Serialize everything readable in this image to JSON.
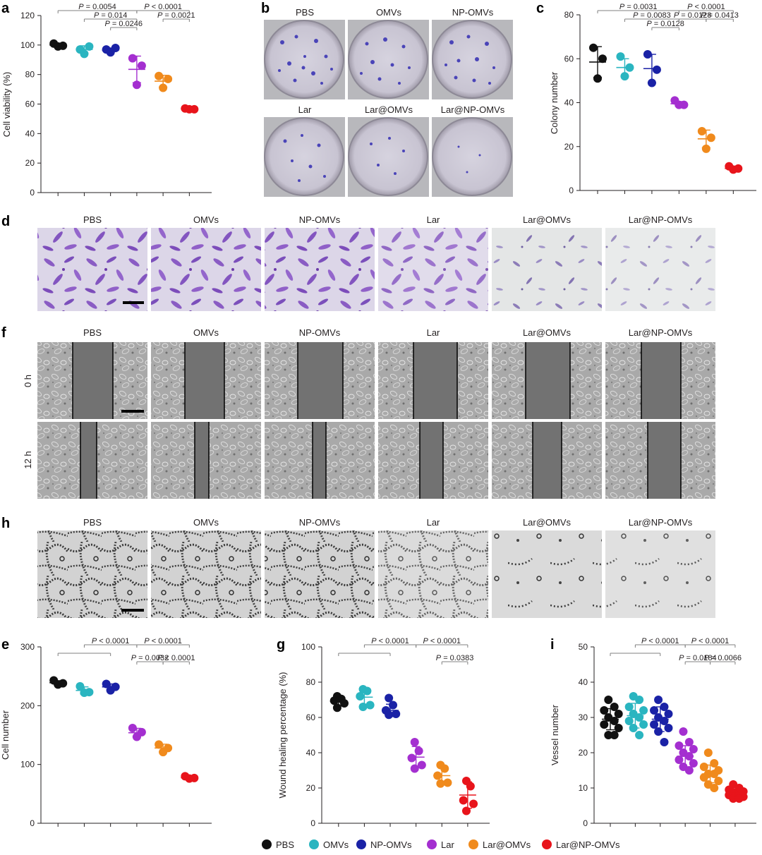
{
  "groups": [
    "PBS",
    "OMVs",
    "NP-OMVs",
    "Lar",
    "Lar@OMVs",
    "Lar@NP-OMVs"
  ],
  "group_colors": [
    "#111111",
    "#2ab5c0",
    "#1a22a6",
    "#a42fd0",
    "#f08a1c",
    "#e8141b"
  ],
  "panel_letters": {
    "a": "a",
    "b": "b",
    "c": "c",
    "d": "d",
    "f": "f",
    "h": "h",
    "e": "e",
    "g": "g",
    "i": "i"
  },
  "panel_b": {
    "top_labels": [
      "PBS",
      "OMVs",
      "NP-OMVs"
    ],
    "bottom_labels": [
      "Lar",
      "Lar@OMVs",
      "Lar@NP-OMVs"
    ]
  },
  "panel_d": {
    "labels": [
      "PBS",
      "OMVs",
      "NP-OMVs",
      "Lar",
      "Lar@OMVs",
      "Lar@NP-OMVs"
    ]
  },
  "panel_f": {
    "labels": [
      "PBS",
      "OMVs",
      "NP-OMVs",
      "Lar",
      "Lar@OMVs",
      "Lar@NP-OMVs"
    ],
    "rows": [
      "0 h",
      "12 h"
    ]
  },
  "panel_h": {
    "labels": [
      "PBS",
      "OMVs",
      "NP-OMVs",
      "Lar",
      "Lar@OMVs",
      "Lar@NP-OMVs"
    ]
  },
  "legend": {
    "entries": [
      "PBS",
      "OMVs",
      "NP-OMVs",
      "Lar",
      "Lar@OMVs",
      "Lar@NP-OMVs"
    ]
  },
  "chart_data": [
    {
      "id": "a",
      "type": "scatter",
      "title": "",
      "xlabel": "",
      "ylabel": "Cell viability (%)",
      "ylim": [
        0,
        120
      ],
      "yticks": [
        0,
        20,
        40,
        60,
        80,
        100,
        120
      ],
      "categories": [
        "PBS",
        "OMVs",
        "NP-OMVs",
        "Lar",
        "Lar@OMVs",
        "Lar@NP-OMVs"
      ],
      "points": [
        [
          101,
          99.5,
          99
        ],
        [
          97,
          99,
          94
        ],
        [
          97,
          98,
          95
        ],
        [
          91,
          86,
          73
        ],
        [
          79,
          77,
          71
        ],
        [
          57,
          56.5,
          56.5
        ]
      ],
      "means": [
        100,
        97,
        96.5,
        83.5,
        75.5,
        56.8
      ],
      "sd": [
        1,
        2.5,
        1.5,
        9,
        4,
        0.4
      ],
      "significance": [
        {
          "from": 0,
          "to": 3,
          "label": "P = 0.0054",
          "level": 3
        },
        {
          "from": 1,
          "to": 3,
          "label": "P = 0.014",
          "level": 2
        },
        {
          "from": 2,
          "to": 3,
          "label": "P = 0.0246",
          "level": 1
        },
        {
          "from": 3,
          "to": 5,
          "label": "P < 0.0001",
          "level": 3
        },
        {
          "from": 4,
          "to": 5,
          "label": "P = 0.0021",
          "level": 2
        }
      ]
    },
    {
      "id": "c",
      "type": "scatter",
      "title": "",
      "xlabel": "",
      "ylabel": "Colony number",
      "ylim": [
        0,
        80
      ],
      "yticks": [
        0,
        20,
        40,
        60,
        80
      ],
      "categories": [
        "PBS",
        "OMVs",
        "NP-OMVs",
        "Lar",
        "Lar@OMVs",
        "Lar@NP-OMVs"
      ],
      "points": [
        [
          65,
          60,
          51
        ],
        [
          61,
          56,
          52
        ],
        [
          62,
          55,
          49
        ],
        [
          41,
          39,
          39
        ],
        [
          27,
          24,
          19
        ],
        [
          11,
          10,
          9.5
        ]
      ],
      "means": [
        58.5,
        56,
        55.5,
        39.5,
        23.5,
        10
      ],
      "sd": [
        7,
        4,
        6.5,
        1,
        4,
        0.7
      ],
      "significance": [
        {
          "from": 0,
          "to": 3,
          "label": "P = 0.0031",
          "level": 3
        },
        {
          "from": 1,
          "to": 3,
          "label": "P = 0.0083",
          "level": 2
        },
        {
          "from": 2,
          "to": 3,
          "label": "P = 0.0128",
          "level": 1
        },
        {
          "from": 3,
          "to": 5,
          "label": "P < 0.0001",
          "level": 3
        },
        {
          "from": 3,
          "to": 4,
          "label": "P = 0.0128",
          "level": 2
        },
        {
          "from": 4,
          "to": 5,
          "label": "P = 0.0413",
          "level": 2
        }
      ]
    },
    {
      "id": "e",
      "type": "scatter",
      "title": "",
      "xlabel": "",
      "ylabel": "Cell number",
      "ylim": [
        0,
        300
      ],
      "yticks": [
        0,
        100,
        200,
        300
      ],
      "categories": [
        "PBS",
        "OMVs",
        "NP-OMVs",
        "Lar",
        "Lar@OMVs",
        "Lar@NP-OMVs"
      ],
      "points": [
        [
          243,
          238,
          236
        ],
        [
          233,
          223,
          222
        ],
        [
          237,
          232,
          226
        ],
        [
          162,
          155,
          147
        ],
        [
          134,
          128,
          121
        ],
        [
          80,
          77,
          76
        ]
      ],
      "means": [
        239,
        226,
        232,
        154,
        128,
        77.5
      ],
      "sd": [
        3.5,
        6,
        5,
        7.5,
        6.5,
        2
      ],
      "significance": [
        {
          "from": 0,
          "to": 2,
          "label": "",
          "level": 2
        },
        {
          "from": 1,
          "to": 3,
          "label": "P < 0.0001",
          "level": 3,
          "group_left": [
            0,
            2
          ]
        },
        {
          "from": 3,
          "to": 5,
          "label": "P < 0.0001",
          "level": 3
        },
        {
          "from": 3,
          "to": 4,
          "label": "P = 0.0032",
          "level": 1
        },
        {
          "from": 4,
          "to": 5,
          "label": "P < 0.0001",
          "level": 1
        }
      ]
    },
    {
      "id": "g",
      "type": "scatter",
      "title": "",
      "xlabel": "",
      "ylabel": "Wound healing percentage (%)",
      "ylim": [
        0,
        100
      ],
      "yticks": [
        0,
        20,
        40,
        60,
        80,
        100
      ],
      "categories": [
        "PBS",
        "OMVs",
        "NP-OMVs",
        "Lar",
        "Lar@OMVs",
        "Lar@NP-OMVs"
      ],
      "points": [
        [
          72,
          70.5,
          69.5,
          68,
          65.5
        ],
        [
          76,
          75,
          72,
          67,
          66
        ],
        [
          71,
          67,
          64,
          62,
          61.5
        ],
        [
          46,
          41,
          37,
          33,
          31
        ],
        [
          33,
          31,
          27,
          23,
          22.5
        ],
        [
          24,
          21,
          13,
          11,
          7
        ]
      ],
      "means": [
        69,
        71.5,
        64,
        37.5,
        27,
        16
      ],
      "sd": [
        2.5,
        4,
        3.5,
        6,
        4.5,
        7.5
      ],
      "significance": [
        {
          "from": 0,
          "to": 2,
          "label": "",
          "level": 2
        },
        {
          "from": 1,
          "to": 3,
          "label": "P < 0.0001",
          "level": 3
        },
        {
          "from": 3,
          "to": 5,
          "label": "P < 0.0001",
          "level": 3
        },
        {
          "from": 4,
          "to": 5,
          "label": "P = 0.0383",
          "level": 1
        }
      ]
    },
    {
      "id": "i",
      "type": "scatter",
      "title": "",
      "xlabel": "",
      "ylabel": "Vessel number",
      "ylim": [
        0,
        50
      ],
      "yticks": [
        0,
        10,
        20,
        30,
        40,
        50
      ],
      "categories": [
        "PBS",
        "OMVs",
        "NP-OMVs",
        "Lar",
        "Lar@OMVs",
        "Lar@NP-OMVs"
      ],
      "points": [
        [
          35,
          33,
          32,
          31,
          30,
          29,
          28,
          27,
          25,
          25
        ],
        [
          36,
          35,
          33,
          32,
          31,
          30,
          29,
          28,
          27,
          25
        ],
        [
          35,
          33,
          32,
          31,
          30,
          29,
          28,
          27,
          26,
          23
        ],
        [
          26,
          23,
          22,
          21,
          20,
          19,
          18,
          17,
          16,
          15
        ],
        [
          20,
          17,
          16,
          15,
          14,
          14,
          13,
          12,
          11,
          10
        ],
        [
          11,
          10,
          9.5,
          9,
          8.5,
          8,
          8,
          7.5,
          7,
          7
        ]
      ],
      "means": [
        29.5,
        30.5,
        29.5,
        19,
        14,
        8.5
      ],
      "sd": [
        3,
        3.5,
        3.5,
        3,
        2.5,
        1.2
      ],
      "significance": [
        {
          "from": 0,
          "to": 2,
          "label": "",
          "level": 2
        },
        {
          "from": 1,
          "to": 3,
          "label": "P < 0.0001",
          "level": 3
        },
        {
          "from": 3,
          "to": 5,
          "label": "P < 0.0001",
          "level": 3
        },
        {
          "from": 3,
          "to": 4,
          "label": "P = 0.0184",
          "level": 1
        },
        {
          "from": 4,
          "to": 5,
          "label": "P = 0.0066",
          "level": 1
        }
      ]
    }
  ]
}
